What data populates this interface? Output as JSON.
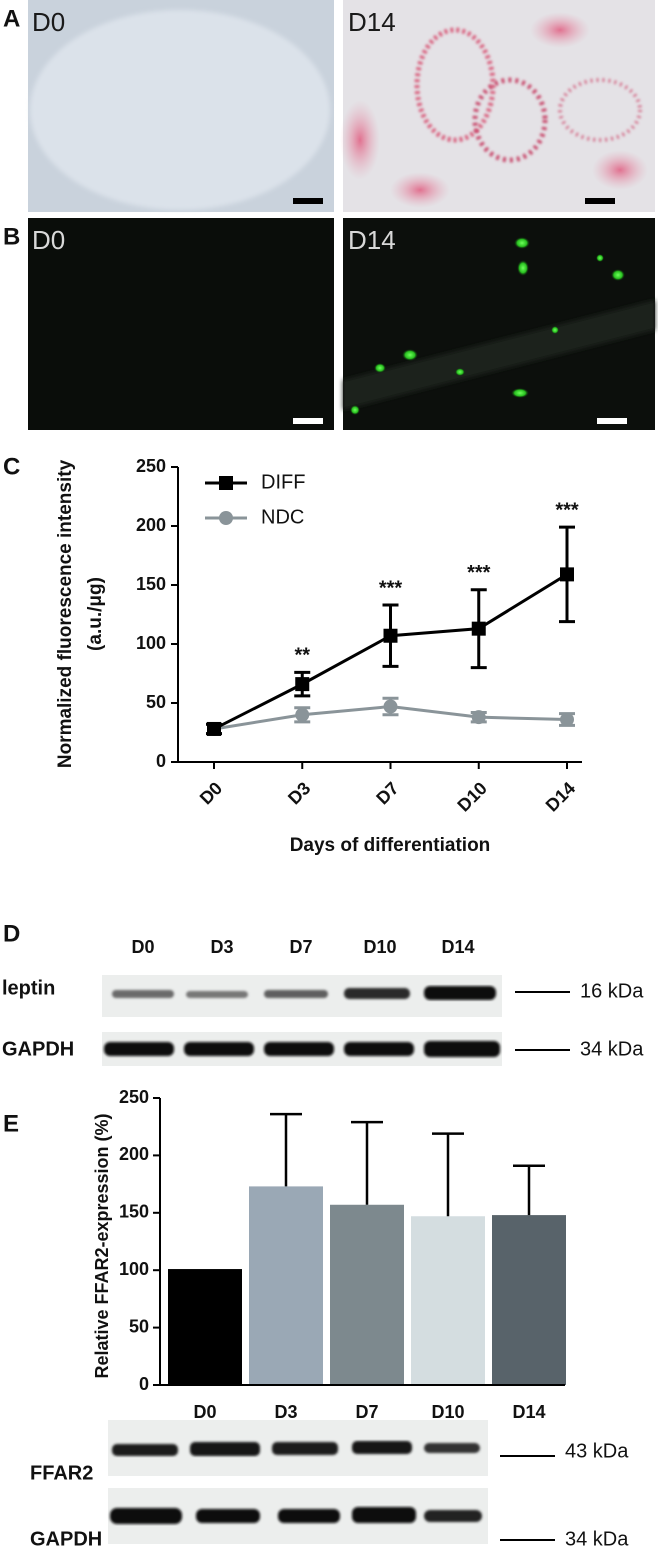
{
  "panel_labels": [
    "A",
    "B",
    "C",
    "D",
    "E"
  ],
  "micrographs": [
    {
      "label": "D0"
    },
    {
      "label": "D14"
    },
    {
      "label": "D0"
    },
    {
      "label": "D14"
    }
  ],
  "chart_data": [
    {
      "type": "line",
      "categories": [
        "D0",
        "D3",
        "D7",
        "D10",
        "D14"
      ],
      "series": [
        {
          "name": "DIFF",
          "color": "#000000",
          "marker": "square",
          "values": [
            28,
            66,
            107,
            113,
            159
          ],
          "errors": [
            4,
            10,
            26,
            33,
            40
          ]
        },
        {
          "name": "NDC",
          "color": "#8a9499",
          "marker": "circle",
          "values": [
            28,
            40,
            47,
            38,
            36
          ],
          "errors": [
            4,
            6,
            7,
            4,
            5
          ]
        }
      ],
      "significance": [
        null,
        "**",
        "***",
        "***",
        "***"
      ],
      "ylim": [
        0,
        250
      ],
      "yticks": [
        0,
        50,
        100,
        150,
        200,
        250
      ],
      "xlabel": "Days of differentiation",
      "ylabel": [
        "Normalized fluorescence intensity",
        "(a.u./μg)"
      ],
      "legend": "upper-left"
    },
    {
      "type": "bar",
      "categories": [
        "D0",
        "D3",
        "D7",
        "D10",
        "D14"
      ],
      "values": [
        101,
        173,
        157,
        147,
        148
      ],
      "errors": [
        null,
        63,
        72,
        72,
        43
      ],
      "colors": [
        "#000000",
        "#9aa8b5",
        "#7d898e",
        "#d4dde0",
        "#58636a"
      ],
      "ylim": [
        0,
        250
      ],
      "yticks": [
        0,
        50,
        100,
        150,
        200,
        250
      ],
      "ylabel": "Relative FFAR2-expression (%)"
    }
  ],
  "blot_d": {
    "lanes": [
      "D0",
      "D3",
      "D7",
      "D10",
      "D14"
    ],
    "rows": [
      {
        "label": "leptin",
        "marker": "16 kDa"
      },
      {
        "label": "GAPDH",
        "marker": "34 kDa"
      }
    ]
  },
  "blot_e": {
    "rows": [
      {
        "label": "FFAR2",
        "marker": "43 kDa"
      },
      {
        "label": "GAPDH",
        "marker": "34 kDa"
      }
    ]
  }
}
